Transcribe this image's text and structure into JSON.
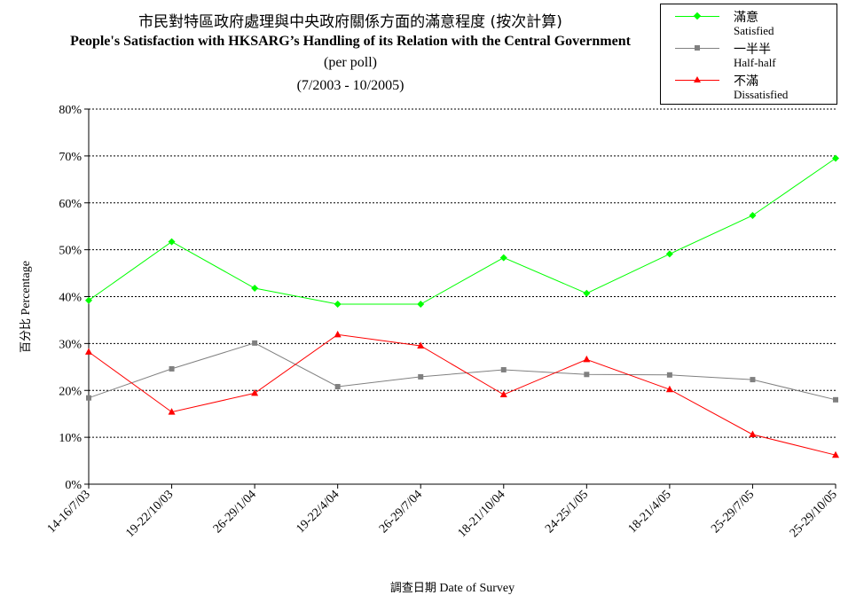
{
  "chart_data": {
    "type": "line",
    "title_zh": "市民對特區政府處理與中央政府關係方面的滿意程度 (按次計算)",
    "title_en": "People's Satisfaction with HKSARG’s Handling of its Relation with the Central Government",
    "subtitle": "(per poll)",
    "period": "(7/2003 -  10/2005)",
    "ylabel_zh": "百分比",
    "ylabel_en": "Percentage",
    "xlabel_zh": "調查日期",
    "xlabel_en": "Date of Survey",
    "ylim": [
      0,
      80
    ],
    "yticks": [
      "0%",
      "10%",
      "20%",
      "30%",
      "40%",
      "50%",
      "60%",
      "70%",
      "80%"
    ],
    "categories": [
      "14-16/7/03",
      "19-22/10/03",
      "26-29/1/04",
      "19-22/4/04",
      "26-29/7/04",
      "18-21/10/04",
      "24-25/1/05",
      "18-21/4/05",
      "25-29/7/05",
      "25-29/10/05"
    ],
    "grid": true,
    "legend_position": "top-right",
    "series": [
      {
        "name": "Satisfied",
        "name_zh": "滿意",
        "color": "#00ff00",
        "marker": "diamond",
        "values": [
          39.2,
          51.7,
          41.8,
          38.4,
          38.4,
          48.3,
          40.7,
          49.1,
          57.3,
          69.5
        ]
      },
      {
        "name": "Half-half",
        "name_zh": "一半半",
        "color": "#808080",
        "marker": "square",
        "values": [
          18.4,
          24.6,
          30.1,
          20.8,
          22.9,
          24.4,
          23.4,
          23.3,
          22.3,
          18.0
        ]
      },
      {
        "name": "Dissatisfied",
        "name_zh": "不滿",
        "color": "#ff0000",
        "marker": "triangle",
        "values": [
          28.2,
          15.4,
          19.4,
          31.9,
          29.5,
          19.1,
          26.6,
          20.2,
          10.6,
          6.2
        ]
      }
    ]
  }
}
